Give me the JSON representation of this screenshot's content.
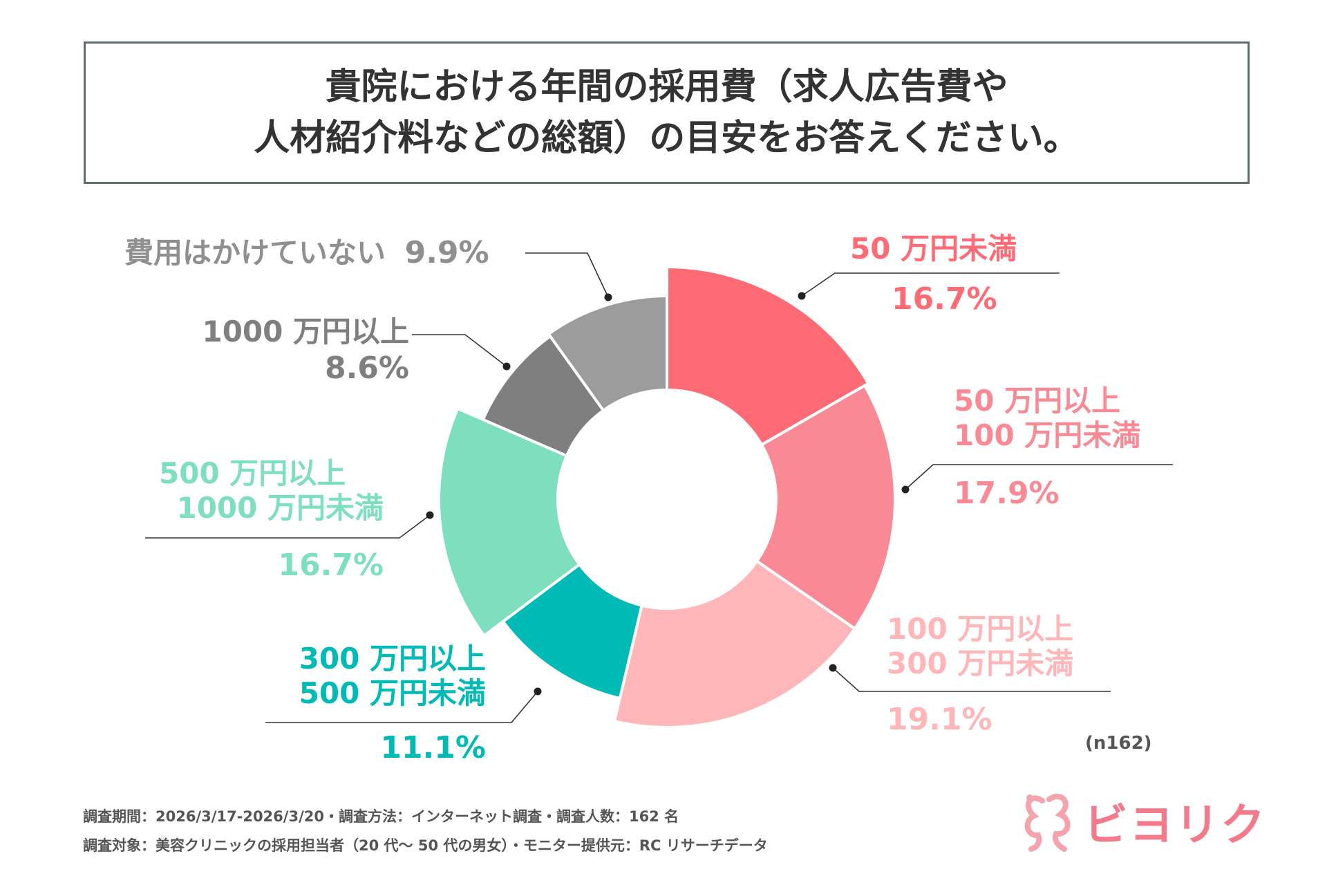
{
  "title": {
    "line1": "貴院における年間の採用費（求人広告費や",
    "line2": "人材紹介料などの総額）の目安をお答えください。"
  },
  "chart_data": {
    "type": "pie",
    "variant": "donut",
    "start": "top, clockwise",
    "categories": [
      "50万円未満",
      "50万円以上100万円未満",
      "100万円以上300万円未満",
      "300万円以上500万円未満",
      "500万円以上1000万円未満",
      "1000万円以上",
      "費用はかけていない"
    ],
    "values": [
      16.7,
      17.9,
      19.1,
      11.1,
      16.7,
      8.6,
      9.9
    ],
    "unit": "%",
    "colors": [
      "#ff6b75",
      "#f98a95",
      "#ffb6b8",
      "#00bab5",
      "#7edfbf",
      "#7f7f7f",
      "#9c9c9c"
    ]
  },
  "labels": [
    {
      "name1": "50 万円未満",
      "name2": "",
      "pct": "16.7%",
      "color": "#ff6b75"
    },
    {
      "name1": "50 万円以上",
      "name2": "100 万円未満",
      "pct": "17.9%",
      "color": "#f98a95"
    },
    {
      "name1": "100 万円以上",
      "name2": "300 万円未満",
      "pct": "19.1%",
      "color": "#ffb6b8"
    },
    {
      "name1": "300 万円以上",
      "name2": "500 万円未満",
      "pct": "11.1%",
      "color": "#00bab5"
    },
    {
      "name1": "500 万円以上",
      "name2": "1000 万円未満",
      "pct": "16.7%",
      "color": "#7edfbf"
    },
    {
      "name1": "1000 万円以上",
      "name2": "",
      "pct": "8.6%",
      "color": "#7f7f7f"
    },
    {
      "name1": "費用はかけていない",
      "name2": "",
      "pct": "9.9%",
      "color": "#8f8f8f"
    }
  ],
  "sample_note": "(n162)",
  "footer": {
    "line1": "調査期間：2026/3/17-2026/3/20・調査方法：インターネット調査・調査人数：162 名",
    "line2": "調査対象：美容クリニックの採用担当者（20 代～ 50 代の男女）・モニター提供元：RC リサーチデータ"
  },
  "logo": {
    "text": "ビヨリク",
    "color": "#f27a8a"
  }
}
